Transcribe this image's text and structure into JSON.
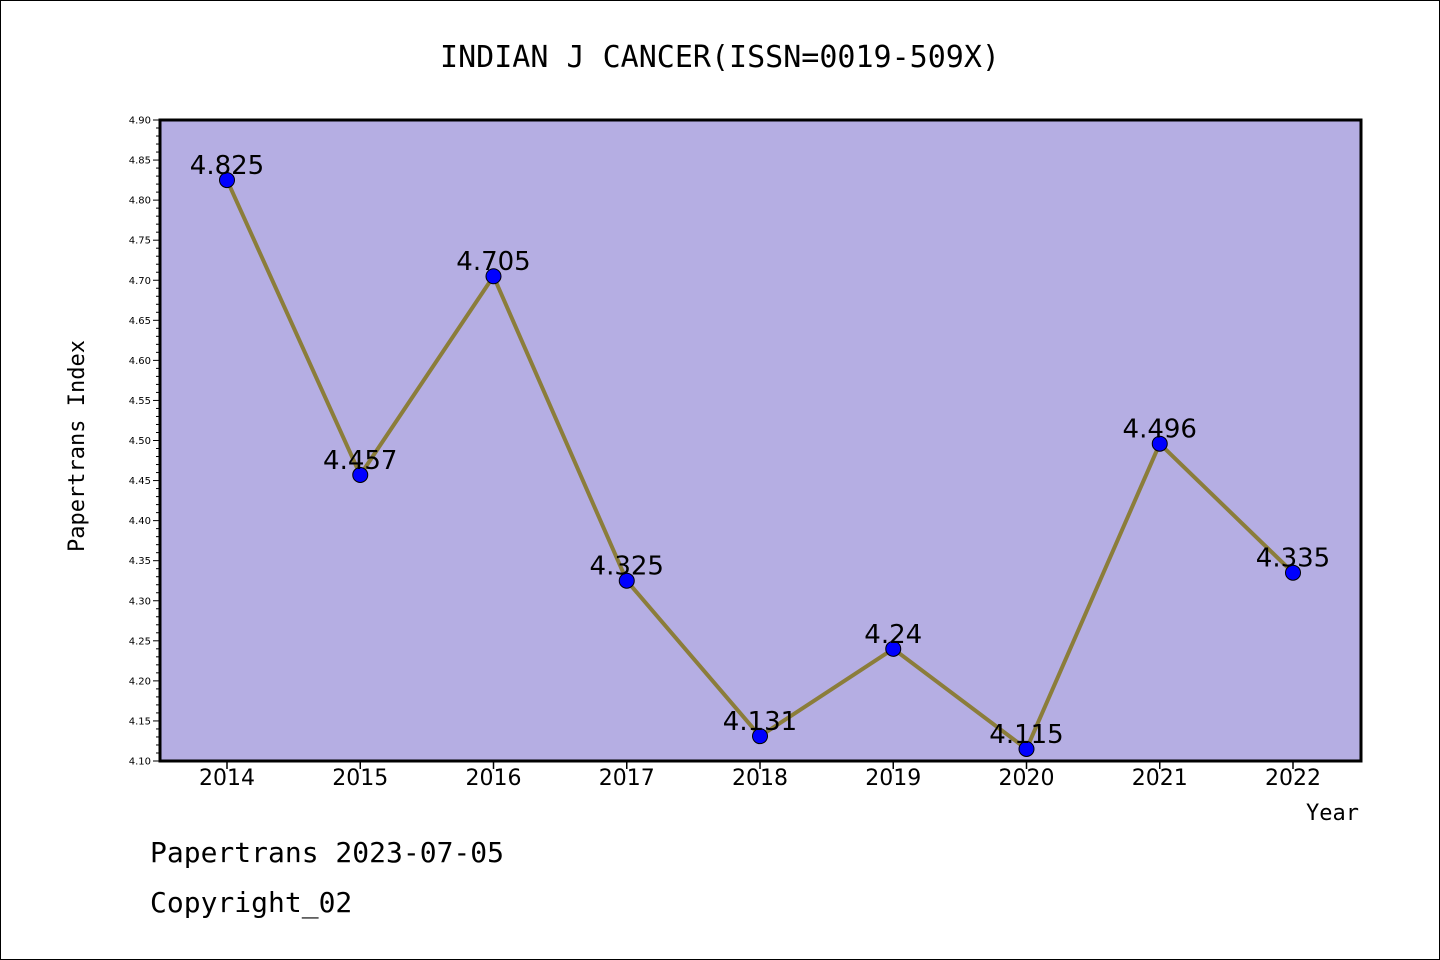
{
  "footer": {
    "line1": "Papertrans 2023-07-05",
    "line2": "Copyright_02"
  },
  "chart_data": {
    "type": "line",
    "title": "INDIAN J CANCER(ISSN=0019-509X)",
    "xlabel": "Year",
    "ylabel": "Papertrans Index",
    "x": [
      "2014",
      "2015",
      "2016",
      "2017",
      "2018",
      "2019",
      "2020",
      "2021",
      "2022"
    ],
    "values": [
      4.825,
      4.457,
      4.705,
      4.325,
      4.131,
      4.24,
      4.115,
      4.496,
      4.335
    ],
    "data_labels": [
      "4.825",
      "4.457",
      "4.705",
      "4.325",
      "4.131",
      "4.24",
      "4.115",
      "4.496",
      "4.335"
    ],
    "ylim": [
      4.1,
      4.9
    ],
    "yticks": [
      "4.10",
      "4.15",
      "4.20",
      "4.25",
      "4.30",
      "4.35",
      "4.40",
      "4.45",
      "4.50",
      "4.55",
      "4.60",
      "4.65",
      "4.70",
      "4.75",
      "4.80",
      "4.85",
      "4.90"
    ],
    "grid": false,
    "colors": {
      "plot_background": "#b5aee3",
      "line": "#8b7d3a",
      "marker": "#0000ff"
    }
  }
}
